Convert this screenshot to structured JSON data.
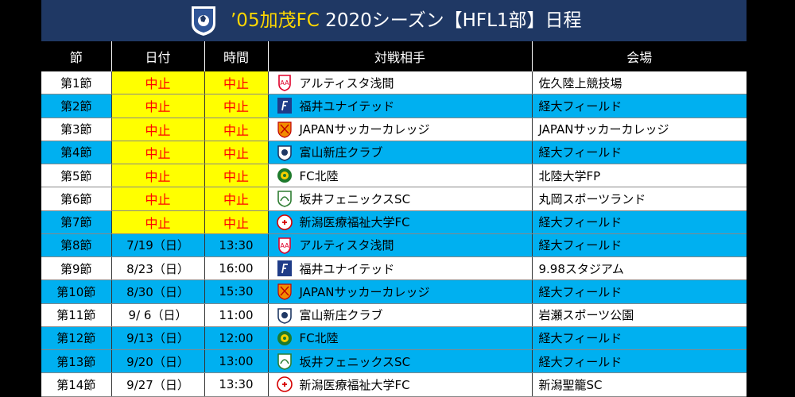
{
  "title": {
    "prefix": "’05",
    "club": "加茂FC",
    "rest": " 2020シーズン【HFL1部】日程"
  },
  "logo_icon": "kei-univ-crest-icon",
  "headers": [
    "節",
    "日付",
    "時間",
    "対戦相手",
    "会場"
  ],
  "colors": {
    "title_bg": "#1f3864",
    "header_bg": "#000000",
    "row_blue": "#00b0f0",
    "cancel_bg": "#ffff00",
    "cancel_text": "#ff0000",
    "club_title": "#ffd700"
  },
  "rows": [
    {
      "sec": "第1節",
      "date": "中止",
      "time": "中止",
      "opp": "アルティスタ浅間",
      "venue": "佐久陸上競技場",
      "highlight": false,
      "cancelled": true,
      "icon": "asama-crest-icon"
    },
    {
      "sec": "第2節",
      "date": "中止",
      "time": "中止",
      "opp": "福井ユナイテッド",
      "venue": "経大フィールド",
      "highlight": true,
      "cancelled": true,
      "icon": "fukui-crest-icon"
    },
    {
      "sec": "第3節",
      "date": "中止",
      "time": "中止",
      "opp": "JAPANサッカーカレッジ",
      "venue": "JAPANサッカーカレッジ",
      "highlight": false,
      "cancelled": true,
      "icon": "jsc-crest-icon"
    },
    {
      "sec": "第4節",
      "date": "中止",
      "time": "中止",
      "opp": "富山新庄クラブ",
      "venue": "経大フィールド",
      "highlight": true,
      "cancelled": true,
      "icon": "toyama-crest-icon"
    },
    {
      "sec": "第5節",
      "date": "中止",
      "time": "中止",
      "opp": "FC北陸",
      "venue": "北陸大学FP",
      "highlight": false,
      "cancelled": true,
      "icon": "hokuriku-crest-icon"
    },
    {
      "sec": "第6節",
      "date": "中止",
      "time": "中止",
      "opp": "坂井フェニックスSC",
      "venue": "丸岡スポーツランド",
      "highlight": false,
      "cancelled": true,
      "icon": "sakai-crest-icon"
    },
    {
      "sec": "第7節",
      "date": "中止",
      "time": "中止",
      "opp": "新潟医療福祉大学FC",
      "venue": "経大フィールド",
      "highlight": true,
      "cancelled": true,
      "icon": "niigata-medical-crest-icon"
    },
    {
      "sec": "第8節",
      "date": "7/19（日）",
      "time": "13:30",
      "opp": "アルティスタ浅間",
      "venue": "経大フィールド",
      "highlight": true,
      "cancelled": false,
      "icon": "asama-crest-icon"
    },
    {
      "sec": "第9節",
      "date": "8/23（日）",
      "time": "16:00",
      "opp": "福井ユナイテッド",
      "venue": "9.98スタジアム",
      "highlight": false,
      "cancelled": false,
      "icon": "fukui-crest-icon"
    },
    {
      "sec": "第10節",
      "date": "8/30（日）",
      "time": "15:30",
      "opp": "JAPANサッカーカレッジ",
      "venue": "経大フィールド",
      "highlight": true,
      "cancelled": false,
      "icon": "jsc-crest-icon"
    },
    {
      "sec": "第11節",
      "date": "9/ 6（日）",
      "time": "11:00",
      "opp": "富山新庄クラブ",
      "venue": "岩瀬スポーツ公園",
      "highlight": false,
      "cancelled": false,
      "icon": "toyama-crest-icon"
    },
    {
      "sec": "第12節",
      "date": "9/13（日）",
      "time": "12:00",
      "opp": "FC北陸",
      "venue": "経大フィールド",
      "highlight": true,
      "cancelled": false,
      "icon": "hokuriku-crest-icon"
    },
    {
      "sec": "第13節",
      "date": "9/20（日）",
      "time": "13:00",
      "opp": "坂井フェニックスSC",
      "venue": "経大フィールド",
      "highlight": true,
      "cancelled": false,
      "icon": "sakai-crest-icon"
    },
    {
      "sec": "第14節",
      "date": "9/27（日）",
      "time": "13:30",
      "opp": "新潟医療福祉大学FC",
      "venue": "新潟聖籠SC",
      "highlight": false,
      "cancelled": false,
      "icon": "niigata-medical-crest-icon"
    }
  ]
}
